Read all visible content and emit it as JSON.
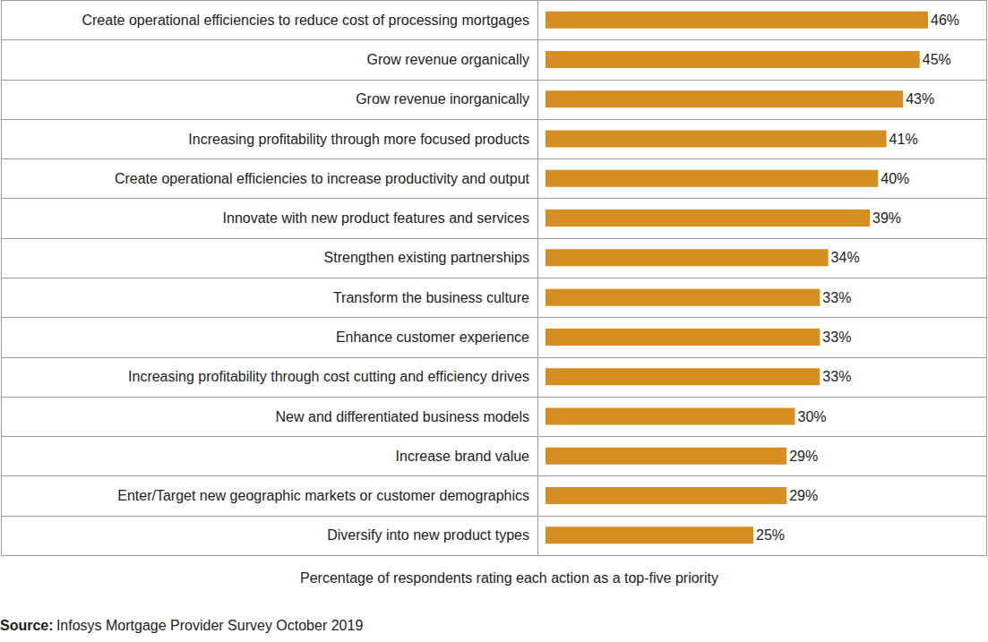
{
  "chart_data": {
    "type": "bar",
    "orientation": "horizontal",
    "categories": [
      "Create operational efficiencies to reduce cost of processing mortgages",
      "Grow revenue organically",
      "Grow revenue inorganically",
      "Increasing profitability through more focused products",
      "Create operational efficiencies to increase productivity and output",
      "Innovate with new product features and services",
      "Strengthen existing partnerships",
      "Transform the business culture",
      "Enhance customer experience",
      "Increasing profitability through cost cutting and efficiency drives",
      "New and differentiated business models",
      "Increase brand value",
      "Enter/Target new geographic markets or customer demographics",
      "Diversify into new product types"
    ],
    "values": [
      46,
      45,
      43,
      41,
      40,
      39,
      34,
      33,
      33,
      33,
      30,
      29,
      29,
      25
    ],
    "value_labels": [
      "46%",
      "45%",
      "43%",
      "41%",
      "40%",
      "39%",
      "34%",
      "33%",
      "33%",
      "33%",
      "30%",
      "29%",
      "29%",
      "25%"
    ],
    "color": "#d68e21",
    "xlim": [
      0,
      53
    ],
    "xlabel": "Percentage of respondents rating each action as a top-five priority",
    "source_label": "Source:",
    "source": "Infosys Mortgage Provider Survey October 2019",
    "data_labels": true,
    "tick_labels": false,
    "grid": false
  }
}
